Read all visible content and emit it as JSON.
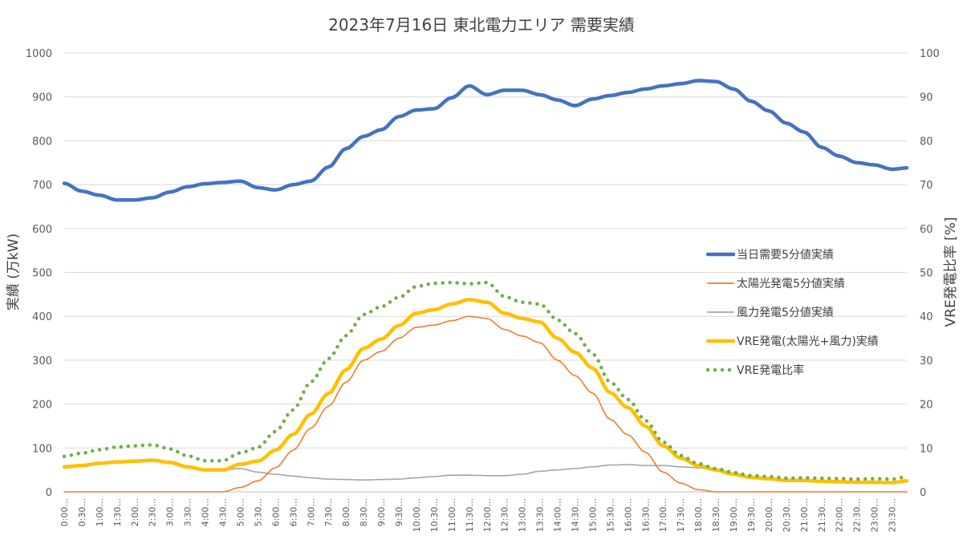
{
  "chart_data": {
    "type": "line",
    "title": "2023年7月16日 東北電力エリア 需要実績",
    "ylabel": "実績 (万kW)",
    "y2label": "VRE発電比率 [%]",
    "ylim": [
      0,
      1000
    ],
    "y2lim": [
      0,
      100
    ],
    "y_ticks": [
      "0",
      "100",
      "200",
      "300",
      "400",
      "500",
      "600",
      "700",
      "800",
      "900",
      "1000"
    ],
    "y2_ticks": [
      "0",
      "10",
      "20",
      "30",
      "40",
      "50",
      "60",
      "70",
      "80",
      "90",
      "100"
    ],
    "x_tick_labels": [
      "0:00...",
      "0:30...",
      "1:00...",
      "1:30...",
      "2:00...",
      "2:30...",
      "3:00...",
      "3:30...",
      "4:00...",
      "4:30...",
      "5:00...",
      "5:30...",
      "6:00...",
      "6:30...",
      "7:00...",
      "7:30...",
      "8:00...",
      "8:30...",
      "9:00...",
      "9:30...",
      "10:00...",
      "10:30...",
      "11:00...",
      "11:30...",
      "12:00...",
      "12:30...",
      "13:00...",
      "13:30...",
      "14:00...",
      "14:30...",
      "15:00...",
      "15:30...",
      "16:00...",
      "16:30...",
      "17:00...",
      "17:30...",
      "18:00...",
      "18:30...",
      "19:00...",
      "19:30...",
      "20:00...",
      "20:30...",
      "21:00...",
      "21:30...",
      "22:00...",
      "22:30...",
      "23:00...",
      "23:30..."
    ],
    "grid": "horizontal",
    "legend_position": "right",
    "x_hours": [
      0,
      0.5,
      1,
      1.5,
      2,
      2.5,
      3,
      3.5,
      4,
      4.5,
      5,
      5.5,
      6,
      6.5,
      7,
      7.5,
      8,
      8.5,
      9,
      9.5,
      10,
      10.5,
      11,
      11.5,
      12,
      12.5,
      13,
      13.5,
      14,
      14.5,
      15,
      15.5,
      16,
      16.5,
      17,
      17.5,
      18,
      18.5,
      19,
      19.5,
      20,
      20.5,
      21,
      21.5,
      22,
      22.5,
      23,
      23.5,
      23.92
    ],
    "series": [
      {
        "name": "当日需要5分値実績",
        "color": "#4472C4",
        "axis": "left",
        "style": "thick",
        "values": [
          703,
          685,
          676,
          665,
          665,
          670,
          683,
          695,
          702,
          705,
          708,
          693,
          688,
          700,
          708,
          740,
          782,
          810,
          825,
          855,
          870,
          873,
          898,
          925,
          905,
          915,
          915,
          905,
          893,
          880,
          895,
          903,
          910,
          918,
          925,
          930,
          937,
          935,
          918,
          890,
          868,
          840,
          820,
          785,
          765,
          750,
          745,
          735,
          738
        ]
      },
      {
        "name": "太陽光発電5分値実績",
        "color": "#ED7D31",
        "axis": "left",
        "style": "thin",
        "values": [
          0,
          0,
          0,
          0,
          0,
          0,
          0,
          0,
          0,
          0,
          10,
          25,
          55,
          95,
          145,
          195,
          250,
          300,
          320,
          350,
          375,
          380,
          390,
          400,
          395,
          370,
          355,
          340,
          300,
          265,
          225,
          165,
          130,
          90,
          45,
          20,
          5,
          0,
          0,
          0,
          0,
          0,
          0,
          0,
          0,
          0,
          0,
          0,
          0
        ]
      },
      {
        "name": "風力発電5分値実績",
        "color": "#A5A5A5",
        "axis": "left",
        "style": "thin",
        "values": [
          57,
          60,
          65,
          68,
          70,
          72,
          67,
          57,
          50,
          50,
          53,
          45,
          40,
          36,
          32,
          29,
          28,
          27,
          28,
          29,
          32,
          35,
          38,
          38,
          37,
          37,
          40,
          47,
          50,
          53,
          57,
          61,
          62,
          60,
          60,
          57,
          55,
          50,
          40,
          33,
          30,
          26,
          26,
          24,
          23,
          22,
          22,
          21,
          25
        ]
      },
      {
        "name": "VRE発電(太陽光+風力)実績",
        "color": "#FFC000",
        "axis": "left",
        "style": "thick",
        "values": [
          57,
          60,
          65,
          68,
          70,
          72,
          67,
          57,
          50,
          50,
          63,
          70,
          95,
          131,
          177,
          224,
          278,
          327,
          348,
          379,
          407,
          415,
          428,
          438,
          432,
          407,
          395,
          387,
          350,
          318,
          282,
          226,
          192,
          150,
          105,
          77,
          60,
          50,
          40,
          33,
          30,
          26,
          26,
          24,
          23,
          22,
          22,
          21,
          25
        ]
      },
      {
        "name": "VRE発電比率",
        "color": "#70AD47",
        "axis": "right",
        "style": "dotted",
        "values": [
          8.1,
          8.8,
          9.6,
          10.2,
          10.5,
          10.7,
          9.8,
          8.2,
          7.1,
          7.1,
          8.9,
          10.1,
          13.8,
          18.7,
          25.0,
          30.3,
          35.6,
          40.4,
          42.2,
          44.3,
          46.8,
          47.5,
          47.7,
          47.4,
          47.7,
          44.5,
          43.2,
          42.8,
          39.2,
          36.1,
          31.5,
          25.0,
          21.1,
          16.3,
          11.4,
          8.3,
          6.4,
          5.3,
          4.4,
          3.7,
          3.5,
          3.1,
          3.2,
          3.1,
          3.0,
          2.9,
          3.0,
          2.9,
          3.4
        ]
      }
    ]
  }
}
